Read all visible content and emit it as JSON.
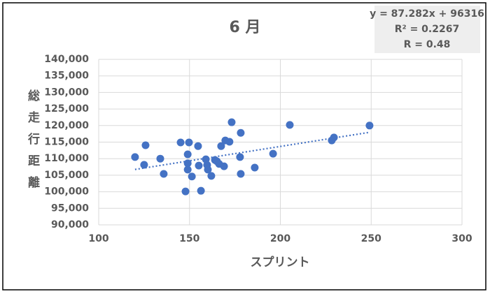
{
  "chart_data": {
    "type": "scatter",
    "title": "6 月",
    "x_label": "スプリント",
    "y_label": "総走行距離",
    "annotations": [
      "y = 87.282x + 96316",
      "R² = 0.2267",
      "R = 0.48"
    ],
    "trendline": true,
    "color": "#4472c4",
    "grid": true,
    "series": [
      {
        "name": "6月",
        "x": [
          120.0,
          125.8,
          125.0,
          133.9,
          135.8,
          145.1,
          147.8,
          149.0,
          149.7,
          149.0,
          149.0,
          151.3,
          154.7,
          155.1,
          156.3,
          159.0,
          159.7,
          160.1,
          162.0,
          164.0,
          165.1,
          166.3,
          167.4,
          169.0,
          169.7,
          172.0,
          173.2,
          178.2,
          177.8,
          178.2,
          185.9,
          196.0,
          205.2,
          228.3,
          229.5,
          249.1
        ],
        "values": [
          110500,
          114050,
          108150,
          110000,
          105400,
          114900,
          100100,
          111300,
          114900,
          108600,
          106700,
          104600,
          113800,
          107900,
          100300,
          109800,
          108100,
          106700,
          104800,
          109600,
          109200,
          108400,
          113800,
          107700,
          115500,
          115100,
          121000,
          117800,
          110500,
          105400,
          107300,
          111500,
          120200,
          115500,
          116400,
          120000
        ]
      }
    ],
    "xlim": [
      100,
      300
    ],
    "xticks": [
      100,
      150,
      200,
      250,
      300
    ],
    "ylim": [
      90000,
      140000
    ],
    "yticks": [
      {
        "value": 90000,
        "label": "90,000"
      },
      {
        "value": 95000,
        "label": "95,000"
      },
      {
        "value": 100000,
        "label": "100,000"
      },
      {
        "value": 105000,
        "label": "105,000"
      },
      {
        "value": 110000,
        "label": "110,000"
      },
      {
        "value": 115000,
        "label": "115,000"
      },
      {
        "value": 120000,
        "label": "120,000"
      },
      {
        "value": 125000,
        "label": "125,000"
      },
      {
        "value": 130000,
        "label": "130,000"
      },
      {
        "value": 135000,
        "label": "135,000"
      },
      {
        "value": 140000,
        "label": "140,000"
      }
    ]
  }
}
